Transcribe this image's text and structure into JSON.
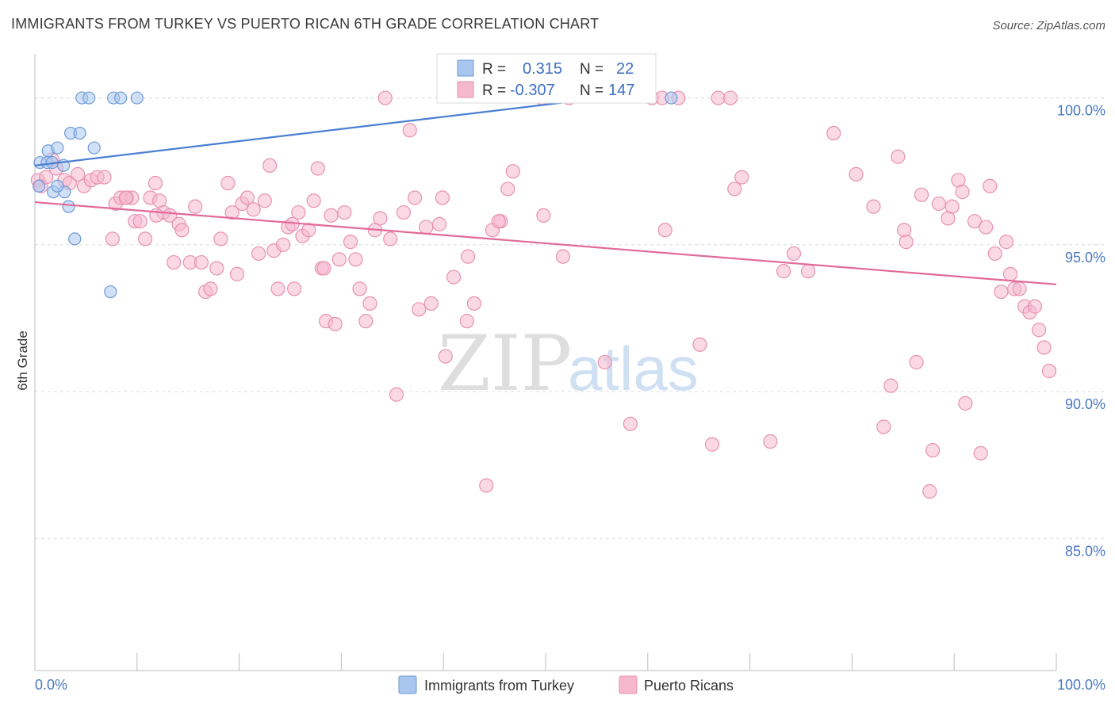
{
  "header": {
    "title": "IMMIGRANTS FROM TURKEY VS PUERTO RICAN 6TH GRADE CORRELATION CHART",
    "source": "Source: ZipAtlas.com"
  },
  "watermark": {
    "zip": "ZIP",
    "atlas": "atlas"
  },
  "colors": {
    "blue": "#4a7fd4",
    "blue_fill": "#a9c6ee",
    "pink": "#e26a98",
    "pink_fill": "#f5b8cd",
    "axis_text": "#4a78c2",
    "grid": "#d9d9d9"
  },
  "legend": {
    "rows": [
      {
        "r_label": "R =",
        "r_value": "0.315",
        "n_label": "N =",
        "n_value": "22",
        "color": "#a9c6ee",
        "stroke": "#6e9ad8"
      },
      {
        "r_label": "R =",
        "r_value": "-0.307",
        "n_label": "N =",
        "n_value": "147",
        "color": "#f5b8cd",
        "stroke": "#e892b0"
      }
    ]
  },
  "bottom_legend": [
    {
      "label": "Immigrants from Turkey",
      "color": "#a9c6ee",
      "stroke": "#6e9ad8"
    },
    {
      "label": "Puerto Ricans",
      "color": "#f5b8cd",
      "stroke": "#e892b0"
    }
  ],
  "chart_data": {
    "type": "scatter",
    "ylabel": "6th Grade",
    "x_ticks": [
      "0.0%",
      "100.0%"
    ],
    "y_ticks": [
      "100.0%",
      "95.0%",
      "90.0%",
      "85.0%"
    ],
    "y_tick_values": [
      100,
      95,
      90,
      85
    ],
    "xlim": [
      0,
      100
    ],
    "ylim": [
      80.5,
      101.5
    ],
    "grid": true,
    "series": [
      {
        "name": "Immigrants from Turkey",
        "points": [
          [
            0.5,
            97.8
          ],
          [
            1.2,
            97.8
          ],
          [
            1.3,
            98.2
          ],
          [
            2.2,
            98.3
          ],
          [
            1.8,
            96.8
          ],
          [
            2.9,
            96.8
          ],
          [
            2.2,
            97.0
          ],
          [
            2.8,
            97.7
          ],
          [
            3.3,
            96.3
          ],
          [
            3.5,
            98.8
          ],
          [
            4.4,
            98.8
          ],
          [
            4.6,
            100.0
          ],
          [
            5.3,
            100.0
          ],
          [
            5.8,
            98.3
          ],
          [
            3.9,
            95.2
          ],
          [
            7.7,
            100.0
          ],
          [
            8.4,
            100.0
          ],
          [
            10.0,
            100.0
          ],
          [
            7.4,
            93.4
          ],
          [
            62.3,
            100.0
          ],
          [
            0.4,
            97.0
          ],
          [
            1.7,
            97.8
          ]
        ],
        "trend": [
          [
            0,
            97.7
          ],
          [
            55.5,
            100.0
          ]
        ]
      },
      {
        "name": "Puerto Ricans",
        "points": [
          [
            0.3,
            97.2
          ],
          [
            0.6,
            97.0
          ],
          [
            1.1,
            97.3
          ],
          [
            1.7,
            97.9
          ],
          [
            2.1,
            97.6
          ],
          [
            2.9,
            97.2
          ],
          [
            3.4,
            97.1
          ],
          [
            4.2,
            97.4
          ],
          [
            4.8,
            97.0
          ],
          [
            5.5,
            97.2
          ],
          [
            6.1,
            97.3
          ],
          [
            6.8,
            97.3
          ],
          [
            7.6,
            95.2
          ],
          [
            7.9,
            96.4
          ],
          [
            8.4,
            96.6
          ],
          [
            9.0,
            96.6
          ],
          [
            9.5,
            96.6
          ],
          [
            9.8,
            95.8
          ],
          [
            10.3,
            95.8
          ],
          [
            10.8,
            95.2
          ],
          [
            11.3,
            96.6
          ],
          [
            11.8,
            97.1
          ],
          [
            12.2,
            96.5
          ],
          [
            12.6,
            96.1
          ],
          [
            13.2,
            96.0
          ],
          [
            13.6,
            94.4
          ],
          [
            14.1,
            95.7
          ],
          [
            14.4,
            95.5
          ],
          [
            15.2,
            94.4
          ],
          [
            15.7,
            96.3
          ],
          [
            16.3,
            94.4
          ],
          [
            16.7,
            93.4
          ],
          [
            17.2,
            93.5
          ],
          [
            17.8,
            94.2
          ],
          [
            18.2,
            95.2
          ],
          [
            18.9,
            97.1
          ],
          [
            19.3,
            96.1
          ],
          [
            19.8,
            94.0
          ],
          [
            20.3,
            96.4
          ],
          [
            20.8,
            96.6
          ],
          [
            21.4,
            96.2
          ],
          [
            21.9,
            94.7
          ],
          [
            22.5,
            96.5
          ],
          [
            23.0,
            97.7
          ],
          [
            23.4,
            94.8
          ],
          [
            23.8,
            93.5
          ],
          [
            24.3,
            95.0
          ],
          [
            24.8,
            95.6
          ],
          [
            25.2,
            95.7
          ],
          [
            25.8,
            96.1
          ],
          [
            26.2,
            95.3
          ],
          [
            26.8,
            95.5
          ],
          [
            27.3,
            96.5
          ],
          [
            27.7,
            97.6
          ],
          [
            28.1,
            94.2
          ],
          [
            28.5,
            92.4
          ],
          [
            29.0,
            96.0
          ],
          [
            29.4,
            92.3
          ],
          [
            29.8,
            94.5
          ],
          [
            30.3,
            96.1
          ],
          [
            30.9,
            95.1
          ],
          [
            31.4,
            94.5
          ],
          [
            31.8,
            93.5
          ],
          [
            32.4,
            92.4
          ],
          [
            32.8,
            93.0
          ],
          [
            33.3,
            95.5
          ],
          [
            33.8,
            95.9
          ],
          [
            34.3,
            100.0
          ],
          [
            34.8,
            95.2
          ],
          [
            35.4,
            89.9
          ],
          [
            36.1,
            96.1
          ],
          [
            36.7,
            98.9
          ],
          [
            37.2,
            96.6
          ],
          [
            37.6,
            92.8
          ],
          [
            38.3,
            95.6
          ],
          [
            38.8,
            93.0
          ],
          [
            39.6,
            95.7
          ],
          [
            39.9,
            96.6
          ],
          [
            40.2,
            91.2
          ],
          [
            41.0,
            93.9
          ],
          [
            42.3,
            92.4
          ],
          [
            42.4,
            94.6
          ],
          [
            43.0,
            93.0
          ],
          [
            44.2,
            86.8
          ],
          [
            44.8,
            95.5
          ],
          [
            45.6,
            95.8
          ],
          [
            46.3,
            96.9
          ],
          [
            46.8,
            97.5
          ],
          [
            49.6,
            100.0
          ],
          [
            51.7,
            94.6
          ],
          [
            52.3,
            100.0
          ],
          [
            55.8,
            91.0
          ],
          [
            58.3,
            88.9
          ],
          [
            60.4,
            100.0
          ],
          [
            61.4,
            100.0
          ],
          [
            61.7,
            95.5
          ],
          [
            63.0,
            100.0
          ],
          [
            65.1,
            91.6
          ],
          [
            66.3,
            88.2
          ],
          [
            66.9,
            100.0
          ],
          [
            68.1,
            100.0
          ],
          [
            68.5,
            96.9
          ],
          [
            69.2,
            97.3
          ],
          [
            72.0,
            88.3
          ],
          [
            73.3,
            94.1
          ],
          [
            74.3,
            94.7
          ],
          [
            75.7,
            94.1
          ],
          [
            78.2,
            98.8
          ],
          [
            80.4,
            97.4
          ],
          [
            82.1,
            96.3
          ],
          [
            83.1,
            88.8
          ],
          [
            83.8,
            90.2
          ],
          [
            84.5,
            98.0
          ],
          [
            85.1,
            95.5
          ],
          [
            85.3,
            95.1
          ],
          [
            86.3,
            91.0
          ],
          [
            86.8,
            96.7
          ],
          [
            87.6,
            86.6
          ],
          [
            87.9,
            88.0
          ],
          [
            88.5,
            96.4
          ],
          [
            89.4,
            95.9
          ],
          [
            89.8,
            96.3
          ],
          [
            90.4,
            97.2
          ],
          [
            90.8,
            96.8
          ],
          [
            91.1,
            89.6
          ],
          [
            92.0,
            95.8
          ],
          [
            92.6,
            87.9
          ],
          [
            93.1,
            95.6
          ],
          [
            93.5,
            97.0
          ],
          [
            94.0,
            94.7
          ],
          [
            94.6,
            93.4
          ],
          [
            95.1,
            95.1
          ],
          [
            95.5,
            94.0
          ],
          [
            95.9,
            93.5
          ],
          [
            96.4,
            93.5
          ],
          [
            96.9,
            92.9
          ],
          [
            97.4,
            92.7
          ],
          [
            97.9,
            92.9
          ],
          [
            98.3,
            92.1
          ],
          [
            98.8,
            91.5
          ],
          [
            99.3,
            90.7
          ],
          [
            28.3,
            94.2
          ],
          [
            25.4,
            93.5
          ],
          [
            45.4,
            95.8
          ],
          [
            11.9,
            96.0
          ],
          [
            8.9,
            96.6
          ],
          [
            49.8,
            96.0
          ]
        ],
        "trend": [
          [
            0,
            96.45
          ],
          [
            100,
            93.65
          ]
        ]
      }
    ]
  }
}
